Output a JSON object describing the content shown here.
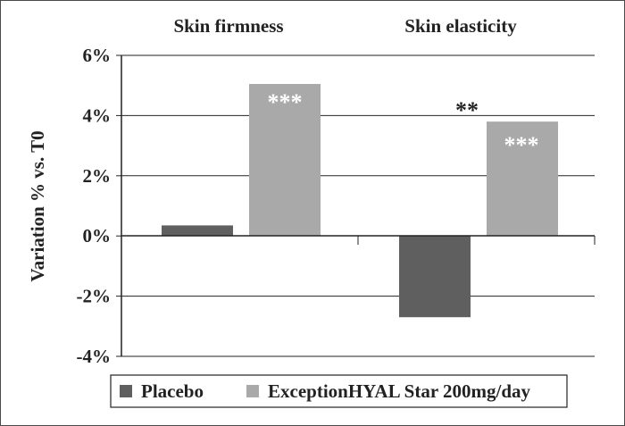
{
  "chart_data": {
    "type": "bar",
    "categories": [
      "Skin firmness",
      "Skin elasticity"
    ],
    "series": [
      {
        "name": "Placebo",
        "color": "#5f5f5f",
        "values": [
          0.35,
          -2.7
        ]
      },
      {
        "name": "ExceptionHYAL Star 200mg/day",
        "color": "#a9a9a9",
        "values": [
          5.05,
          3.8
        ]
      }
    ],
    "ylabel": "Variation % vs. T0",
    "ylim": [
      -4,
      6
    ],
    "yticks": [
      -4,
      -2,
      0,
      2,
      4,
      6
    ],
    "ytick_labels": [
      "-4%",
      "-2%",
      "0%",
      "2%",
      "4%",
      "6%"
    ],
    "grid": true,
    "legend_position": "bottom",
    "annotations": {
      "firmness_active": "***",
      "elasticity_active": "***",
      "elasticity_between": "**"
    }
  }
}
